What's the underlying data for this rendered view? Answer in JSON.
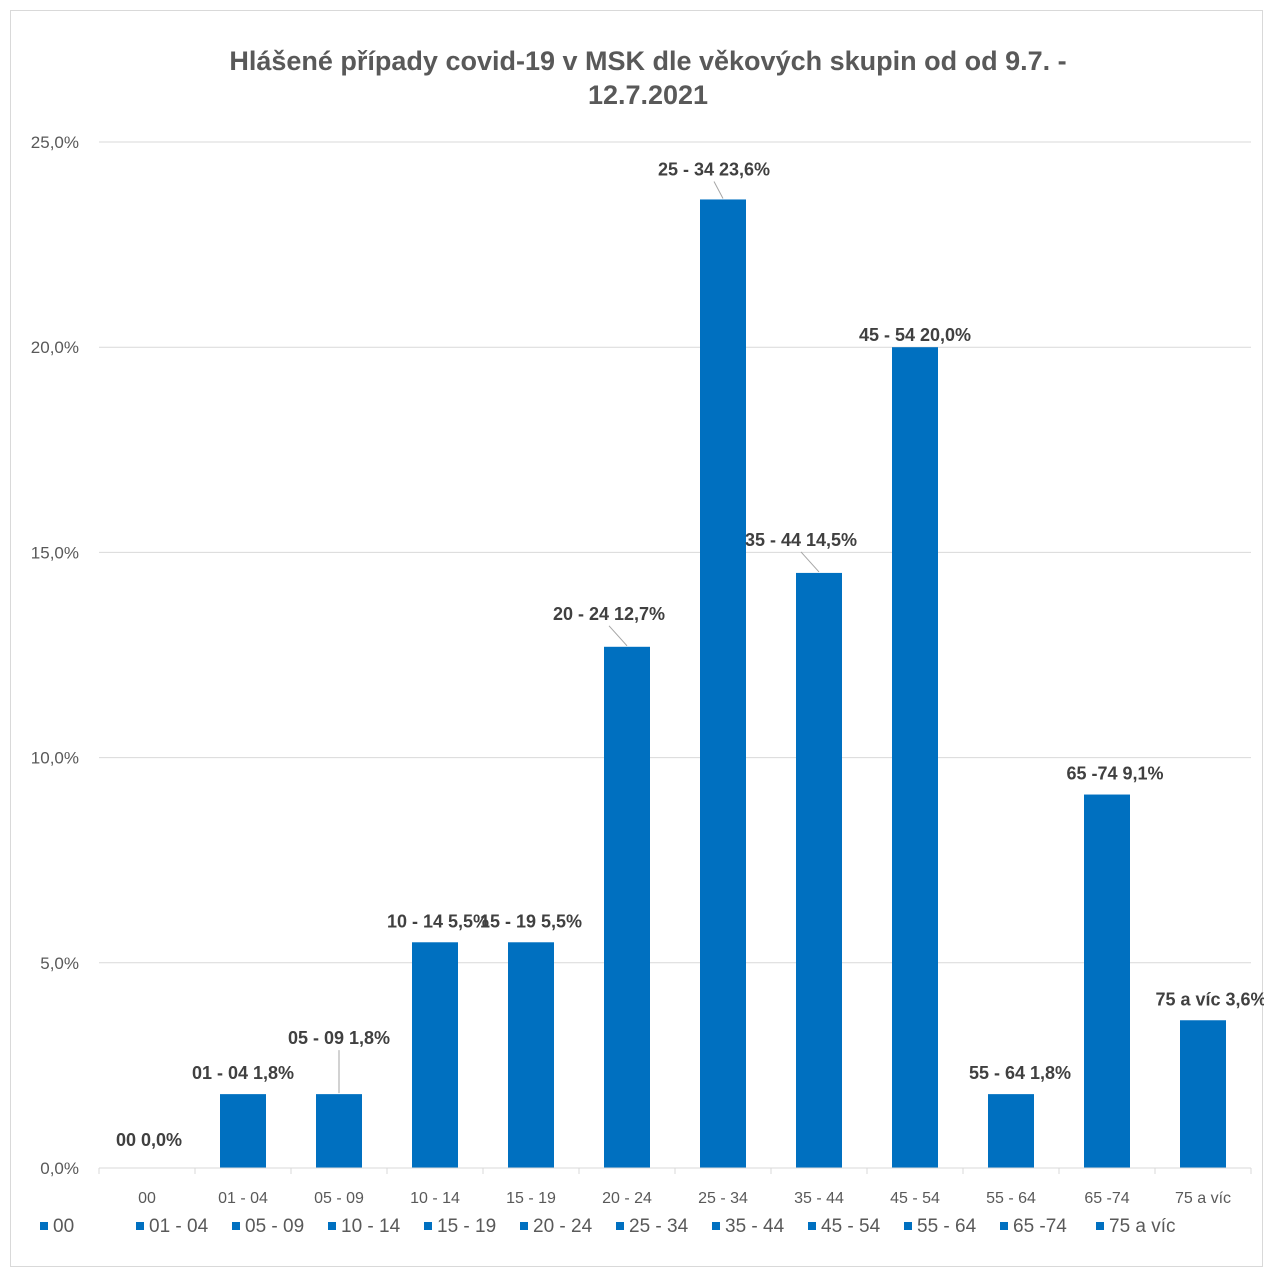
{
  "chart_data": {
    "type": "bar",
    "title_lines": [
      "Hlášené případy covid-19 v MSK dle věkových skupin od od 9.7. -",
      "12.7.2021"
    ],
    "categories": [
      "00",
      "01 - 04",
      "05 - 09",
      "10 - 14",
      "15 - 19",
      "20 - 24",
      "25 - 34",
      "35 - 44",
      "45 - 54",
      "55 - 64",
      "65 -74",
      "75 a víc"
    ],
    "values": [
      0.0,
      1.8,
      1.8,
      5.5,
      5.5,
      12.7,
      23.6,
      14.5,
      20.0,
      1.8,
      9.1,
      3.6
    ],
    "data_labels": [
      "00 0,0%",
      "01 - 04 1,8%",
      "05 - 09 1,8%",
      "10 - 14 5,5%",
      "15 - 19 5,5%",
      "20 - 24 12,7%",
      "25 - 34 23,6%",
      "35 - 44 14,5%",
      "45 - 54 20,0%",
      "55 - 64 1,8%",
      "65 -74 9,1%",
      "75 a víc 3,6%"
    ],
    "y_ticks": [
      "0,0%",
      "5,0%",
      "10,0%",
      "15,0%",
      "20,0%",
      "25,0%"
    ],
    "y_tick_values": [
      0,
      5,
      10,
      15,
      20,
      25
    ],
    "ylim": [
      0,
      25
    ],
    "unit": "%",
    "grid": true,
    "legend_position": "bottom",
    "xlabel": "",
    "ylabel": "",
    "colors": {
      "bar": "#0070c0",
      "grid": "#d9d9d9",
      "axis_text": "#595959",
      "label_text": "#404040",
      "leader_line": "#a6a6a6"
    }
  }
}
